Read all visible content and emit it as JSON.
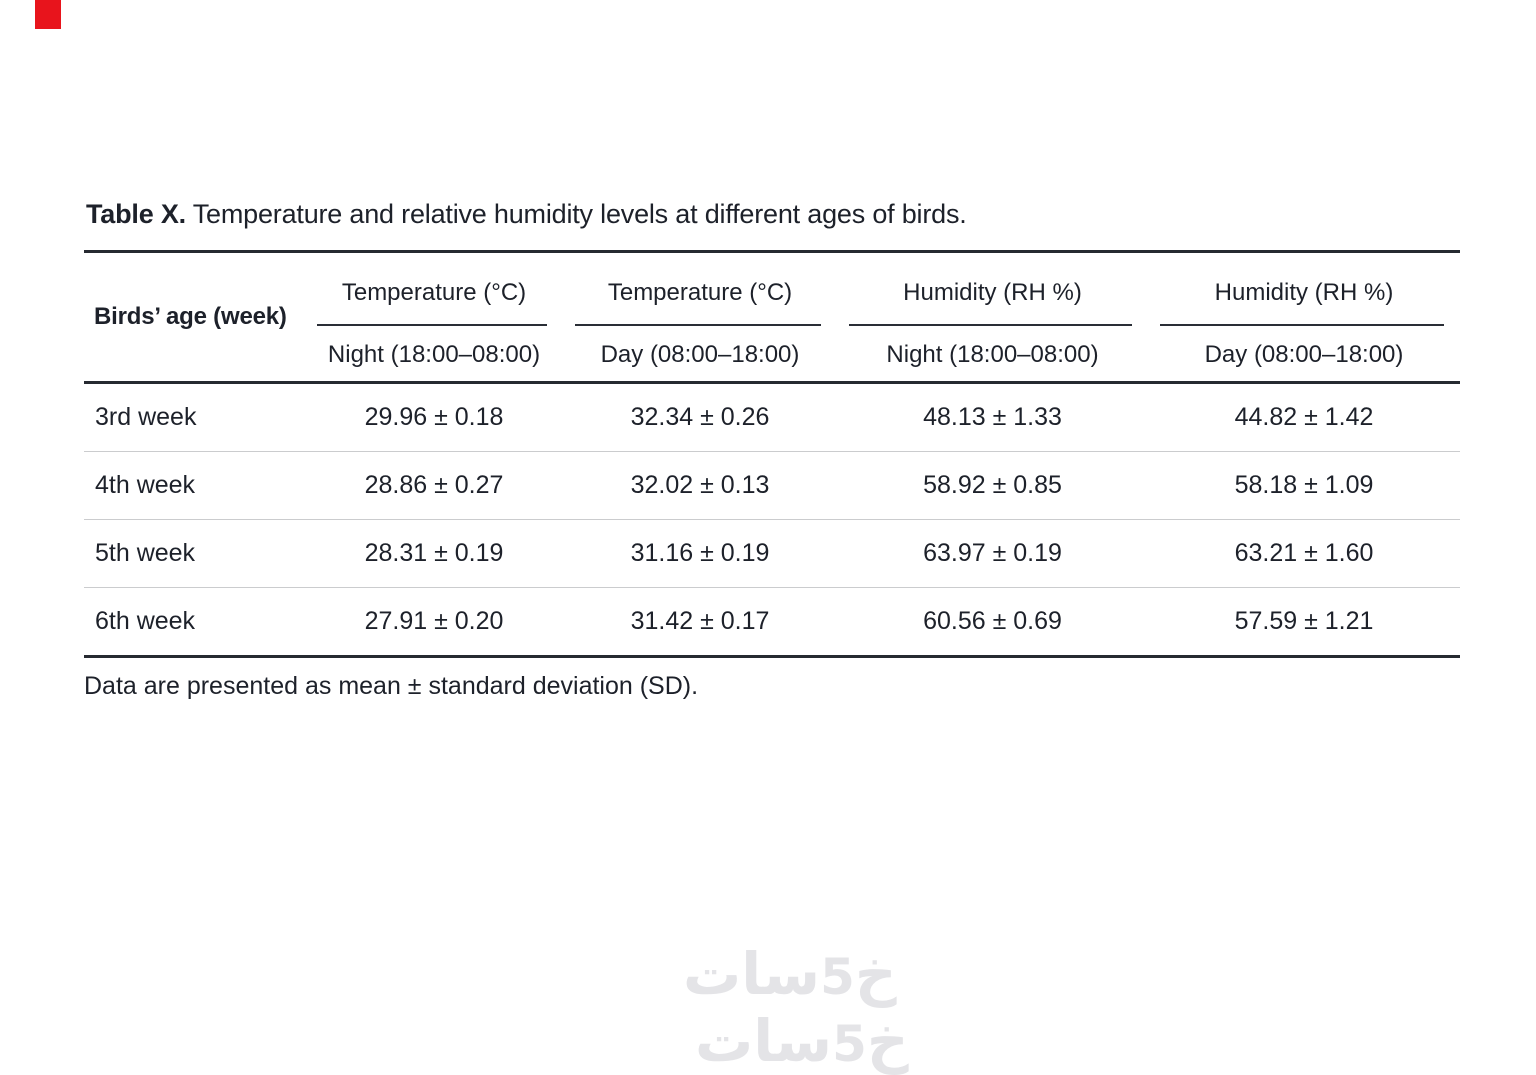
{
  "caption": {
    "label": "Table X.",
    "text": " Temperature and relative humidity levels at different ages of birds."
  },
  "table": {
    "row_header": "Birds’ age (week)",
    "column_groups": [
      {
        "group": "Temperature (°C)",
        "period": "Night (18:00–08:00)"
      },
      {
        "group": "Temperature (°C)",
        "period": "Day (08:00–18:00)"
      },
      {
        "group": "Humidity (RH %)",
        "period": "Night (18:00–08:00)"
      },
      {
        "group": "Humidity (RH %)",
        "period": "Day (08:00–18:00)"
      }
    ],
    "rows": [
      {
        "age": "3rd week",
        "values": [
          "29.96 ± 0.18",
          "32.34 ± 0.26",
          "48.13 ± 1.33",
          "44.82 ± 1.42"
        ]
      },
      {
        "age": "4th week",
        "values": [
          "28.86 ± 0.27",
          "32.02 ± 0.13",
          "58.92 ± 0.85",
          "58.18 ± 1.09"
        ]
      },
      {
        "age": "5th week",
        "values": [
          "28.31 ± 0.19",
          "31.16 ± 0.19",
          "63.97 ± 0.19",
          "63.21 ± 1.60"
        ]
      },
      {
        "age": "6th week",
        "values": [
          "27.91 ± 0.20",
          "31.42 ± 0.17",
          "60.56 ± 0.69",
          "57.59 ± 1.21"
        ]
      }
    ]
  },
  "footnote": "Data are presented as mean ± standard deviation (SD).",
  "watermark": {
    "prefix": "خ",
    "digit": "5",
    "suffix": "سات",
    "full_name": "خمسات",
    "color": "#e4e4e7"
  },
  "marker_color": "#e8141c"
}
